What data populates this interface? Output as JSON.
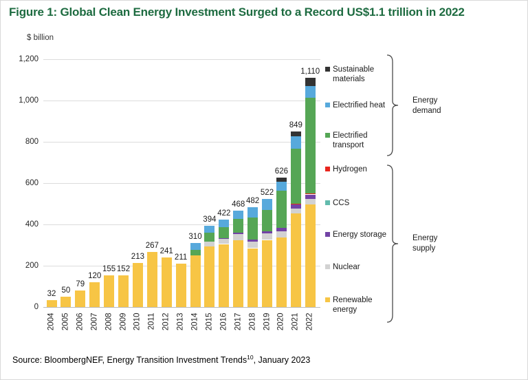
{
  "title": "Figure 1: Global Clean Energy Investment Surged to a Record US$1.1 trillion in 2022",
  "y_axis_title": "$ billion",
  "source": {
    "prefix": "Source: BloombergNEF, Energy Transition Investment Trends",
    "superscript": "10",
    "suffix": ", January 2023"
  },
  "legend": {
    "entries": [
      {
        "label": "Sustainable\nmaterials",
        "color": "#333333"
      },
      {
        "label": "Electrified heat",
        "color": "#57A9DC"
      },
      {
        "label": "Electrified\ntransport",
        "color": "#55A655"
      },
      {
        "label": "Hydrogen",
        "color": "#E8251D"
      },
      {
        "label": "CCS",
        "color": "#62BBAD"
      },
      {
        "label": "Energy storage",
        "color": "#7243A5"
      },
      {
        "label": "Nuclear",
        "color": "#D2D2D2"
      },
      {
        "label": "Renewable\nenergy",
        "color": "#F7C545"
      }
    ],
    "groups": [
      {
        "label": "Energy\ndemand"
      },
      {
        "label": "Energy\nsupply"
      }
    ]
  },
  "chart_data": {
    "type": "bar",
    "subtype": "stacked",
    "categories": [
      "2004",
      "2005",
      "2006",
      "2007",
      "2008",
      "2009",
      "2010",
      "2011",
      "2012",
      "2013",
      "2014",
      "2015",
      "2016",
      "2017",
      "2018",
      "2019",
      "2020",
      "2021",
      "2022"
    ],
    "totals": [
      32,
      50,
      79,
      120,
      155,
      152,
      213,
      267,
      241,
      211,
      310,
      394,
      422,
      468,
      482,
      522,
      626,
      849,
      1110
    ],
    "total_labels": [
      "32",
      "50",
      "79",
      "120",
      "155",
      "152",
      "213",
      "267",
      "241",
      "211",
      "310",
      "394",
      "422",
      "468",
      "482",
      "522",
      "626",
      "849",
      "1,110"
    ],
    "series": [
      {
        "name": "Renewable energy",
        "color": "#F7C545",
        "values": [
          32,
          50,
          79,
          120,
          155,
          152,
          213,
          267,
          241,
          211,
          250,
          294,
          305,
          323,
          285,
          325,
          338,
          452,
          497
        ]
      },
      {
        "name": "Nuclear",
        "color": "#D2D2D2",
        "values": [
          0,
          0,
          0,
          0,
          0,
          0,
          0,
          0,
          0,
          0,
          0,
          24,
          24,
          29,
          32,
          31,
          28,
          26,
          28
        ]
      },
      {
        "name": "Energy storage",
        "color": "#7243A5",
        "values": [
          0,
          0,
          0,
          0,
          0,
          0,
          0,
          0,
          0,
          0,
          0,
          0,
          4,
          8,
          10,
          11,
          17,
          19,
          20
        ]
      },
      {
        "name": "CCS",
        "color": "#62BBAD",
        "values": [
          0,
          0,
          0,
          0,
          0,
          0,
          0,
          0,
          0,
          0,
          0,
          0,
          0,
          0,
          0,
          0,
          0,
          2,
          4
        ]
      },
      {
        "name": "Hydrogen",
        "color": "#E8251D",
        "values": [
          0,
          0,
          0,
          0,
          0,
          0,
          0,
          0,
          0,
          0,
          0,
          0,
          0,
          0,
          0,
          0,
          0,
          2,
          2
        ]
      },
      {
        "name": "Electrified transport",
        "color": "#55A655",
        "values": [
          0,
          0,
          0,
          0,
          0,
          0,
          0,
          0,
          0,
          0,
          27,
          42,
          53,
          68,
          105,
          103,
          179,
          266,
          463
        ]
      },
      {
        "name": "Electrified heat",
        "color": "#57A9DC",
        "values": [
          0,
          0,
          0,
          0,
          0,
          0,
          0,
          0,
          0,
          0,
          33,
          34,
          36,
          40,
          50,
          52,
          44,
          60,
          57
        ]
      },
      {
        "name": "Sustainable materials",
        "color": "#333333",
        "values": [
          0,
          0,
          0,
          0,
          0,
          0,
          0,
          0,
          0,
          0,
          0,
          0,
          0,
          0,
          0,
          0,
          20,
          22,
          39
        ]
      }
    ],
    "ylabel": "$ billion",
    "ylim": [
      0,
      1200
    ],
    "ytick_values": [
      0,
      200,
      400,
      600,
      800,
      1000,
      1200
    ],
    "ytick_labels": [
      "0",
      "200",
      "400",
      "600",
      "800",
      "1,000",
      "1,200"
    ],
    "grid": "horizontal",
    "legend_position": "right"
  }
}
